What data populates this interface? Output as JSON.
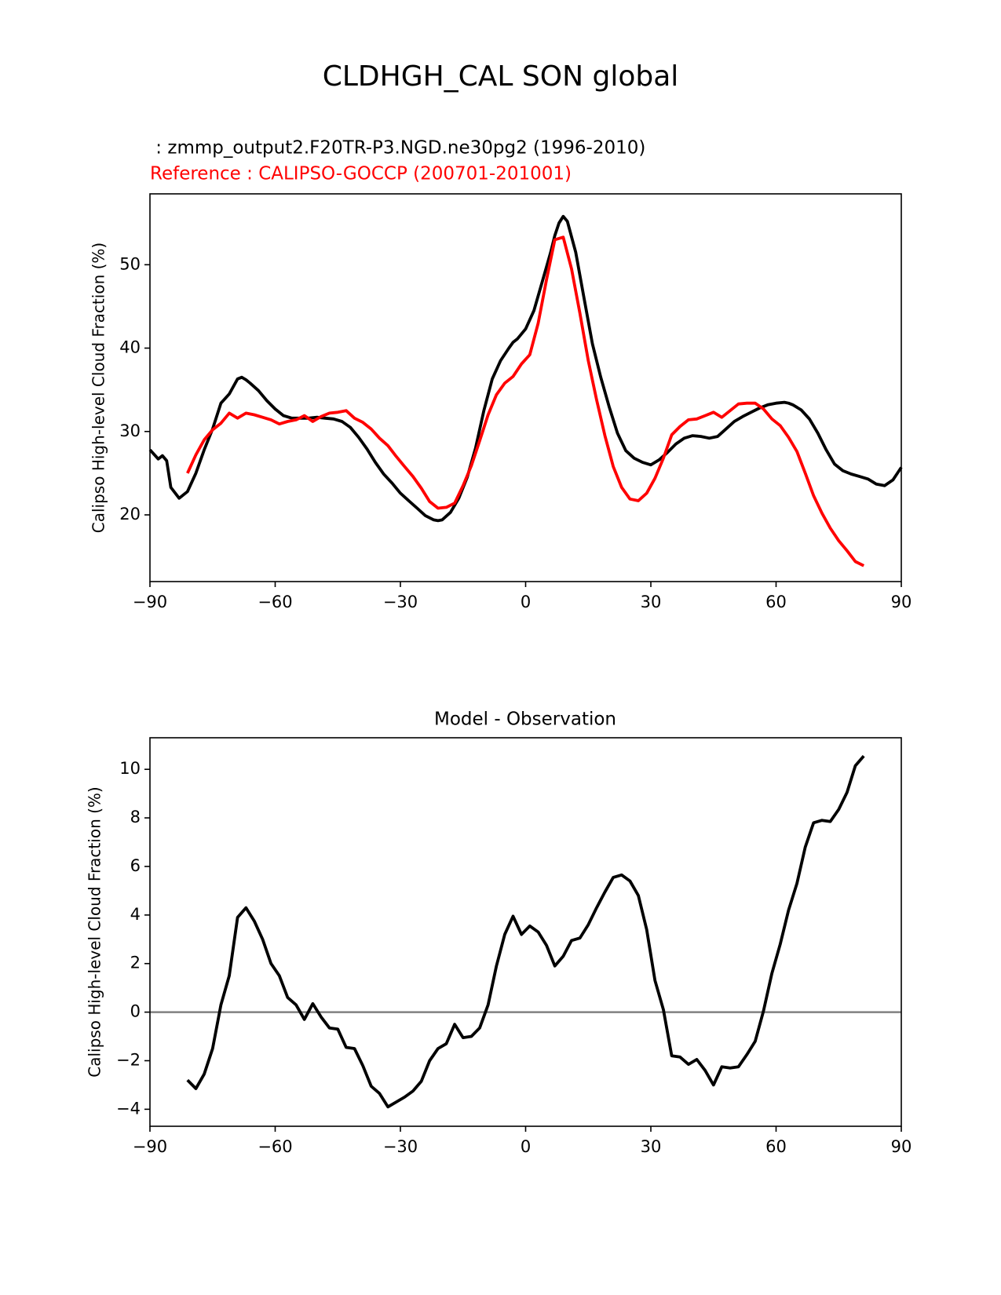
{
  "suptitle": "CLDHGH_CAL SON global",
  "colors": {
    "model": "#000000",
    "reference": "#ff0000",
    "zero_line": "#808080"
  },
  "chart_data": [
    {
      "type": "line",
      "test_label": " : zmmp_output2.F20TR-P3.NGD.ne30pg2 (1996-2010)",
      "ref_label": "Reference : CALIPSO-GOCCP (200701-201001)",
      "title": "",
      "xlabel": "",
      "ylabel": "Calipso High-level Cloud Fraction (%)",
      "xlim": [
        -90,
        90
      ],
      "ylim": [
        12,
        58.5
      ],
      "xticks": [
        -90,
        -60,
        -30,
        0,
        30,
        60,
        90
      ],
      "xtick_labels": [
        "−90",
        "−60",
        "−30",
        "0",
        "30",
        "60",
        "90"
      ],
      "yticks": [
        20,
        30,
        40,
        50
      ],
      "ytick_labels": [
        "20",
        "30",
        "40",
        "50"
      ],
      "series": [
        {
          "name": "model",
          "color": "#000000",
          "x": [
            -90,
            -88,
            -87,
            -86,
            -85,
            -83,
            -81,
            -79,
            -77,
            -75,
            -73,
            -71,
            -69,
            -68,
            -67,
            -66,
            -64,
            -62,
            -60,
            -58,
            -56,
            -54,
            -52,
            -50,
            -48,
            -46,
            -44,
            -42,
            -40,
            -38,
            -36,
            -34,
            -32,
            -30,
            -28,
            -26,
            -24,
            -22,
            -21,
            -20,
            -18,
            -16,
            -14,
            -12,
            -10,
            -8,
            -6,
            -4,
            -3,
            -2,
            0,
            2,
            4,
            6,
            7,
            8,
            9,
            10,
            12,
            14,
            16,
            18,
            20,
            22,
            24,
            26,
            28,
            30,
            32,
            34,
            36,
            38,
            40,
            42,
            44,
            46,
            48,
            50,
            52,
            54,
            56,
            58,
            60,
            62,
            63,
            64,
            66,
            68,
            70,
            72,
            74,
            76,
            78,
            80,
            82,
            84,
            86,
            88,
            90
          ],
          "values": [
            27.8,
            26.7,
            27.1,
            26.5,
            23.3,
            22.0,
            22.8,
            25.0,
            27.8,
            30.3,
            33.4,
            34.5,
            36.3,
            36.5,
            36.2,
            35.8,
            34.9,
            33.7,
            32.7,
            31.9,
            31.6,
            31.6,
            31.6,
            31.7,
            31.6,
            31.5,
            31.2,
            30.5,
            29.3,
            27.9,
            26.3,
            24.9,
            23.8,
            22.6,
            21.7,
            20.8,
            19.9,
            19.4,
            19.3,
            19.4,
            20.3,
            22.0,
            24.5,
            28.0,
            32.5,
            36.3,
            38.5,
            40.0,
            40.7,
            41.1,
            42.3,
            44.5,
            48.0,
            51.5,
            53.5,
            55.0,
            55.8,
            55.2,
            51.5,
            46.0,
            40.5,
            36.5,
            33.0,
            29.8,
            27.7,
            26.8,
            26.3,
            26.0,
            26.6,
            27.5,
            28.5,
            29.2,
            29.5,
            29.4,
            29.2,
            29.4,
            30.3,
            31.2,
            31.8,
            32.3,
            32.8,
            33.2,
            33.4,
            33.5,
            33.4,
            33.2,
            32.6,
            31.5,
            29.8,
            27.8,
            26.1,
            25.3,
            24.9,
            24.6,
            24.3,
            23.7,
            23.5,
            24.2,
            25.7
          ]
        },
        {
          "name": "reference",
          "color": "#ff0000",
          "x": [
            -81,
            -79,
            -77,
            -75,
            -73,
            -71,
            -69,
            -67,
            -65,
            -63,
            -61,
            -59,
            -57,
            -55,
            -53,
            -51,
            -49,
            -47,
            -45,
            -43,
            -41,
            -39,
            -37,
            -35,
            -33,
            -31,
            -29,
            -27,
            -25,
            -23,
            -21,
            -19,
            -17,
            -15,
            -13,
            -11,
            -9,
            -7,
            -5,
            -3,
            -1,
            1,
            3,
            5,
            7,
            9,
            11,
            13,
            15,
            17,
            19,
            21,
            23,
            25,
            27,
            29,
            31,
            33,
            35,
            37,
            39,
            41,
            43,
            45,
            47,
            49,
            51,
            53,
            55,
            57,
            59,
            61,
            63,
            65,
            67,
            69,
            71,
            73,
            75,
            77,
            79,
            81
          ],
          "values": [
            25.0,
            27.2,
            29.0,
            30.2,
            31.0,
            32.2,
            31.6,
            32.2,
            32.0,
            31.7,
            31.4,
            30.9,
            31.2,
            31.4,
            31.9,
            31.2,
            31.8,
            32.2,
            32.3,
            32.5,
            31.6,
            31.1,
            30.3,
            29.2,
            28.3,
            27.0,
            25.8,
            24.6,
            23.2,
            21.6,
            20.8,
            20.9,
            21.4,
            23.5,
            25.9,
            28.9,
            32.0,
            34.4,
            35.8,
            36.6,
            38.1,
            39.2,
            43.0,
            48.2,
            53.0,
            53.3,
            49.5,
            44.2,
            38.5,
            33.8,
            29.5,
            25.8,
            23.3,
            21.9,
            21.7,
            22.6,
            24.4,
            26.8,
            29.6,
            30.6,
            31.4,
            31.5,
            31.9,
            32.3,
            31.7,
            32.5,
            33.3,
            33.4,
            33.4,
            32.7,
            31.5,
            30.7,
            29.3,
            27.6,
            25.0,
            22.3,
            20.2,
            18.4,
            16.9,
            15.7,
            14.4,
            13.9
          ]
        }
      ]
    },
    {
      "type": "line",
      "title": "Model - Observation",
      "xlabel": "",
      "ylabel": "Calipso High-level Cloud Fraction (%)",
      "xlim": [
        -90,
        90
      ],
      "ylim": [
        -4.7,
        11.3
      ],
      "xticks": [
        -90,
        -60,
        -30,
        0,
        30,
        60,
        90
      ],
      "xtick_labels": [
        "−90",
        "−60",
        "−30",
        "0",
        "30",
        "60",
        "90"
      ],
      "yticks": [
        -4,
        -2,
        0,
        2,
        4,
        6,
        8,
        10
      ],
      "ytick_labels": [
        "−4",
        "−2",
        "0",
        "2",
        "4",
        "6",
        "8",
        "10"
      ],
      "hline": {
        "y": 0,
        "color": "#808080"
      },
      "series": [
        {
          "name": "difference",
          "color": "#000000",
          "x": [
            -81,
            -79,
            -77,
            -75,
            -73,
            -71,
            -69,
            -67,
            -65,
            -63,
            -61,
            -59,
            -57,
            -55,
            -53,
            -51,
            -49,
            -47,
            -45,
            -43,
            -41,
            -39,
            -37,
            -35,
            -33,
            -31,
            -29,
            -27,
            -25,
            -23,
            -21,
            -19,
            -17,
            -15,
            -13,
            -11,
            -9,
            -7,
            -5,
            -3,
            -1,
            1,
            3,
            5,
            7,
            9,
            11,
            13,
            15,
            17,
            19,
            21,
            23,
            25,
            27,
            29,
            31,
            33,
            35,
            37,
            39,
            41,
            43,
            45,
            47,
            49,
            51,
            53,
            55,
            57,
            59,
            61,
            63,
            65,
            67,
            69,
            71,
            73,
            75,
            77,
            79,
            81
          ],
          "values": [
            -2.8,
            -3.15,
            -2.55,
            -1.5,
            0.3,
            1.5,
            3.9,
            4.3,
            3.75,
            3.0,
            2.0,
            1.5,
            0.6,
            0.3,
            -0.3,
            0.35,
            -0.2,
            -0.65,
            -0.7,
            -1.45,
            -1.5,
            -2.2,
            -3.05,
            -3.35,
            -3.9,
            -3.7,
            -3.5,
            -3.25,
            -2.85,
            -2.0,
            -1.5,
            -1.3,
            -0.5,
            -1.05,
            -1.0,
            -0.65,
            0.3,
            1.9,
            3.2,
            3.95,
            3.2,
            3.55,
            3.3,
            2.75,
            1.9,
            2.3,
            2.95,
            3.05,
            3.6,
            4.3,
            4.95,
            5.55,
            5.65,
            5.4,
            4.8,
            3.4,
            1.3,
            0.1,
            -1.8,
            -1.85,
            -2.15,
            -1.95,
            -2.4,
            -3.0,
            -2.25,
            -2.3,
            -2.25,
            -1.75,
            -1.2,
            0.05,
            1.6,
            2.8,
            4.2,
            5.3,
            6.8,
            7.8,
            7.9,
            7.85,
            8.35,
            9.05,
            10.15,
            10.55
          ]
        }
      ]
    }
  ]
}
